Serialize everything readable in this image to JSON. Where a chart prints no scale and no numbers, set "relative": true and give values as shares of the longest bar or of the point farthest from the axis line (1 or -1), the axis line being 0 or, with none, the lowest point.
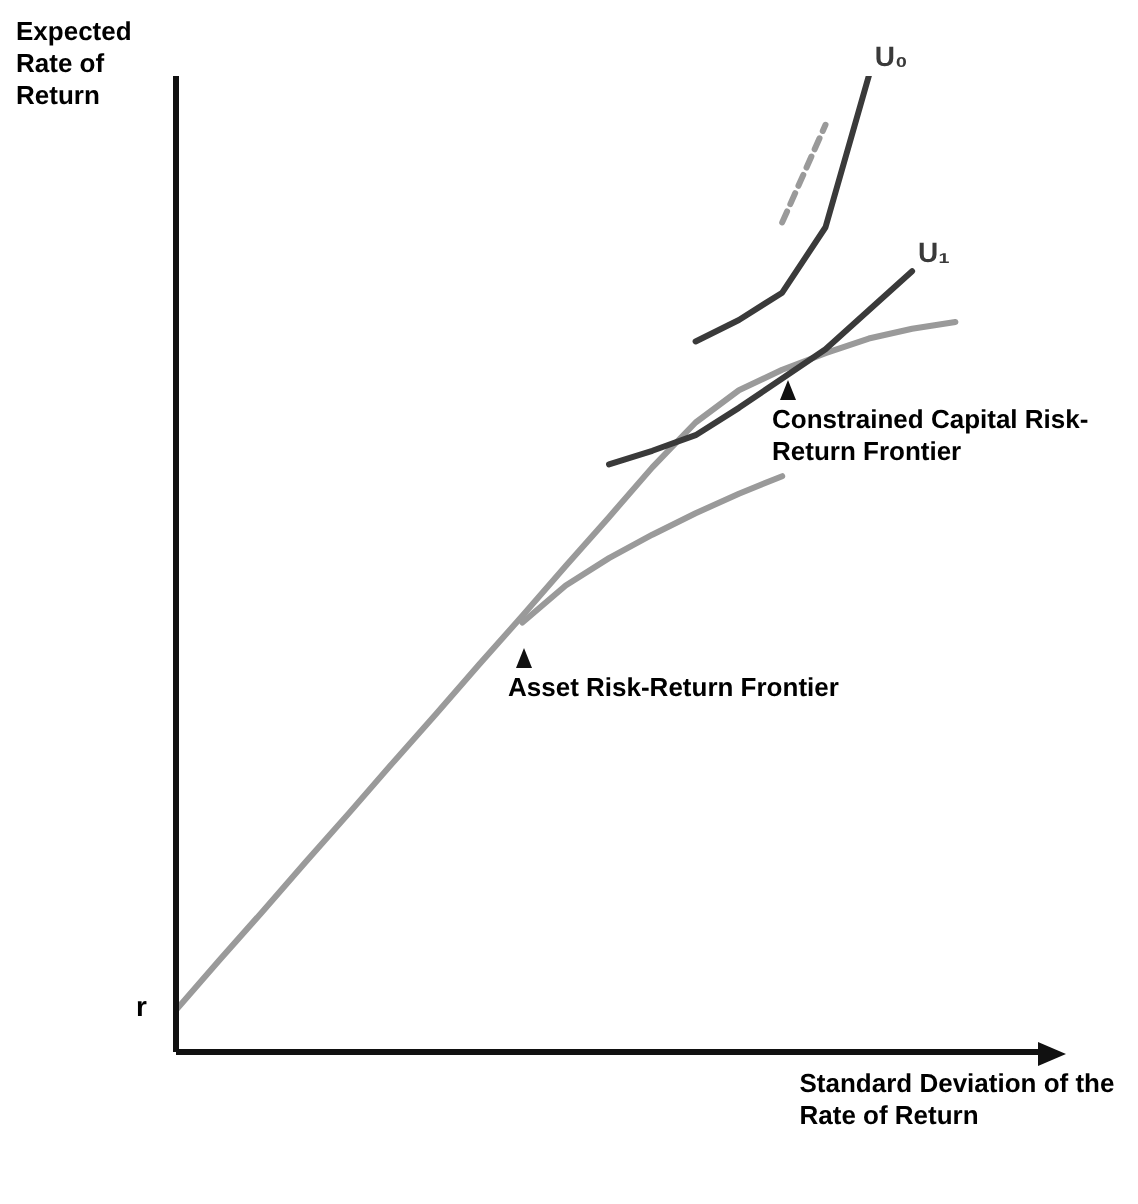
{
  "chart_data": {
    "type": "line",
    "relative": true,
    "xlabel": "Standard Deviation of the Rate of Return",
    "ylabel": "Expected Rate of Return",
    "marker": "none",
    "line_style": "solid",
    "categories": [
      null,
      null,
      null,
      null,
      null,
      null,
      null,
      null,
      null,
      null,
      null,
      null,
      null,
      null,
      null,
      null,
      null,
      null,
      null,
      null,
      null
    ],
    "series": [
      {
        "color": "#9a9a9a",
        "values": [
          0.043,
          0.094,
          0.144,
          0.195,
          0.245,
          0.296,
          0.346,
          0.397,
          0.447,
          0.498,
          0.548,
          0.599,
          0.645,
          0.678,
          0.699,
          0.716,
          0.731,
          0.741,
          0.748,
          null,
          null
        ]
      },
      {
        "color": "#9a9a9a",
        "values": [
          null,
          null,
          null,
          null,
          null,
          null,
          null,
          null,
          0.44,
          0.478,
          0.506,
          0.53,
          0.552,
          0.572,
          0.59,
          null,
          null,
          null,
          null,
          null,
          null
        ]
      },
      {
        "name": "U₀",
        "color": "#3a3a3a",
        "values": [
          null,
          null,
          null,
          null,
          null,
          null,
          null,
          null,
          null,
          null,
          null,
          null,
          0.728,
          0.75,
          0.778,
          0.845,
          1.0,
          null,
          null,
          null,
          null
        ]
      },
      {
        "name": "U₁",
        "color": "#3a3a3a",
        "values": [
          null,
          null,
          null,
          null,
          null,
          null,
          null,
          null,
          null,
          null,
          0.602,
          0.616,
          0.632,
          0.66,
          0.69,
          0.72,
          0.76,
          0.8,
          null,
          null,
          null
        ]
      },
      {
        "color": "#9a9a9a",
        "line_style": "dashed",
        "values": [
          null,
          null,
          null,
          null,
          null,
          null,
          null,
          null,
          null,
          null,
          null,
          null,
          null,
          null,
          0.85,
          0.95,
          null,
          null,
          null,
          null,
          null
        ]
      }
    ],
    "annotations": [
      "r",
      "Constrained Capital Risk-Return Frontier",
      "Asset Risk-Return Frontier"
    ]
  }
}
